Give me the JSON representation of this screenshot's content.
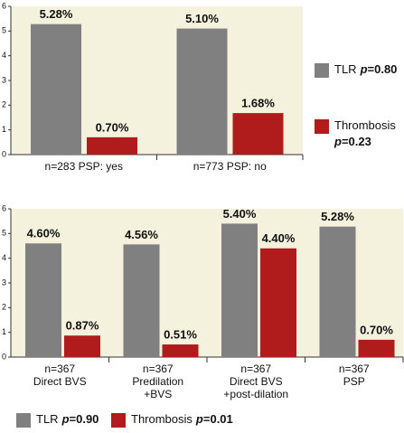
{
  "chart_data": [
    {
      "type": "bar",
      "background": "#f4f1dd",
      "legend": "right",
      "categories": [
        [
          "n=283 PSP: yes"
        ],
        [
          "n=773 PSP: no"
        ]
      ],
      "series": [
        {
          "name": "TLR",
          "stat_symbol": "p",
          "stat_text": "=0.80",
          "color": "#808080",
          "values": [
            5.28,
            5.1
          ],
          "value_labels": [
            "5.28%",
            "5.10%"
          ]
        },
        {
          "name": "Thrombosis",
          "stat_symbol": "p",
          "stat_text": "=0.23",
          "color": "#b01c1c",
          "values": [
            0.7,
            1.68
          ],
          "value_labels": [
            "0.70%",
            "1.68%"
          ]
        }
      ],
      "ylim": [
        0,
        6
      ],
      "yticks": [
        0,
        1,
        2,
        3,
        4,
        5,
        6
      ]
    },
    {
      "type": "bar",
      "background": "#f4f1dd",
      "legend": "bottom",
      "categories": [
        [
          "n=367",
          "Direct BVS"
        ],
        [
          "n=367",
          "Predilation",
          "+BVS"
        ],
        [
          "n=367",
          "Direct BVS",
          "+post-dilation"
        ],
        [
          "n=367",
          "PSP"
        ]
      ],
      "series": [
        {
          "name": "TLR",
          "stat_symbol": "p",
          "stat_text": "=0.90",
          "color": "#808080",
          "values": [
            4.6,
            4.56,
            5.4,
            5.28
          ],
          "value_labels": [
            "4.60%",
            "4.56%",
            "5.40%",
            "5.28%"
          ]
        },
        {
          "name": "Thrombosis",
          "stat_symbol": "p",
          "stat_text": "=0.01",
          "color": "#b01c1c",
          "values": [
            0.87,
            0.51,
            4.4,
            0.7
          ],
          "value_labels": [
            "0.87%",
            "0.51%",
            "4.40%",
            "0.70%"
          ]
        }
      ],
      "ylim": [
        0,
        6
      ],
      "yticks": [
        0,
        1,
        2,
        3,
        4,
        5,
        6
      ]
    }
  ]
}
